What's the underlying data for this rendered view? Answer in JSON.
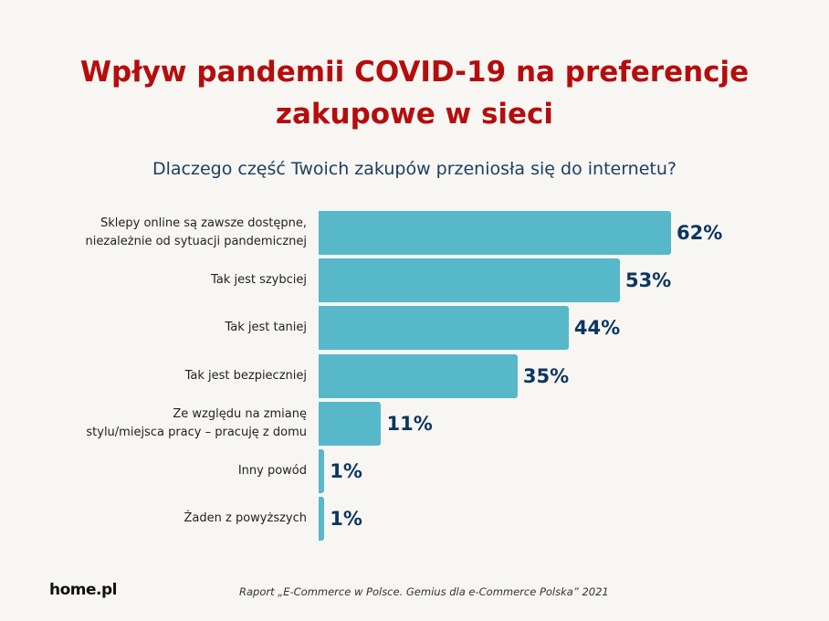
{
  "chart_data": {
    "type": "bar",
    "orientation": "horizontal",
    "title": "Wpływ pandemii COVID-19 na preferencje zakupowe w sieci",
    "title_lines": [
      "Wpływ pandemii COVID-19 na preferencje",
      "zakupowe w sieci"
    ],
    "subtitle": "Dlaczego część Twoich zakupów przeniosła się do internetu?",
    "categories": [
      "Sklepy online są zawsze dostępne,\nniezależnie od sytuacji pandemicznej",
      "Tak jest szybciej",
      "Tak jest taniej",
      "Tak jest bezpieczniej",
      "Ze względu na zmianę\nstylu/miejsca pracy – pracuję z domu",
      "Inny powód",
      "Żaden z powyższych"
    ],
    "values": [
      62,
      53,
      44,
      35,
      11,
      1,
      1
    ],
    "value_labels": [
      "62%",
      "53%",
      "44%",
      "35%",
      "11%",
      "1%",
      "1%"
    ],
    "unit": "%",
    "xlim": [
      0,
      62
    ],
    "colors": {
      "bar": "#56b8c9",
      "value": "#0d3560",
      "title": "#b50d0d",
      "subtitle": "#1d3f63"
    }
  },
  "footer": {
    "logo": "home.pl",
    "source": "Raport „E-Commerce w Polsce. Gemius dla e-Commerce Polska” 2021"
  }
}
